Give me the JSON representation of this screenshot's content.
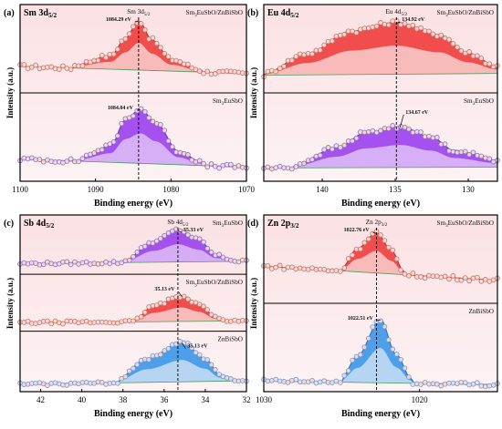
{
  "colors": {
    "background_top": "#fbe1e3",
    "background_bottom": "#fdf1f2",
    "axis": "#000000",
    "sm_red_fill": "#f03c3c",
    "sm_red_light": "#f8b3b0",
    "sm_red_line": "#c7423b",
    "sm_purple_fill": "#9a3ff0",
    "sm_purple_light": "#cfa3f7",
    "sb_blue_fill": "#3b96e9",
    "sb_blue_light": "#a9d0f3",
    "marker_edge_red": "#c8786d",
    "marker_edge_purple": "#8a72c8",
    "marker_edge_blue": "#6f9bd6",
    "marker_face": "#f7dad5",
    "base_green": "#4f9a62"
  },
  "chart_data": [
    {
      "id": "a",
      "type": "line",
      "panel_label": "(a)",
      "element_label": "Sm 3d5/2",
      "xlabel": "Binding energy (eV)",
      "ylabel": "Intensity (a.u.)",
      "xlim": [
        1100,
        1070
      ],
      "xticks": [
        "1100",
        "1090",
        "1080",
        "1070"
      ],
      "grid": false,
      "subpanels": [
        {
          "sample": "Sm3EuSbO7/ZnBiSbO6",
          "peak_label": "Sm 3d5/2",
          "peak_ev": 1084.29,
          "peak_text": "1084.29 eV",
          "theme": "red",
          "series": [
            {
              "name": "background",
              "x": [
                1100,
                1070
              ],
              "y": [
                0.3,
                0.22
              ]
            },
            {
              "name": "fit",
              "x": [
                1093,
                1088,
                1086,
                1084.29,
                1082.5,
                1080,
                1076
              ],
              "y": [
                0.31,
                0.42,
                0.62,
                0.82,
                0.6,
                0.38,
                0.26
              ]
            }
          ]
        },
        {
          "sample": "Sm3EuSbO7",
          "peak_label": "",
          "peak_ev": 1084.04,
          "peak_text": "1084.04 eV",
          "theme": "purple",
          "series": [
            {
              "name": "background",
              "x": [
                1100,
                1070
              ],
              "y": [
                0.25,
                0.16
              ]
            },
            {
              "name": "fit",
              "x": [
                1092,
                1088,
                1086,
                1084.04,
                1082,
                1079,
                1076
              ],
              "y": [
                0.27,
                0.4,
                0.7,
                0.82,
                0.66,
                0.34,
                0.22
              ]
            }
          ]
        }
      ]
    },
    {
      "id": "b",
      "type": "line",
      "panel_label": "(b)",
      "element_label": "Eu 4d5/2",
      "xlabel": "Binding energy (eV)",
      "ylabel": "Intensity (a.u.)",
      "xlim": [
        144,
        128
      ],
      "xticks": [
        "140",
        "135",
        "130"
      ],
      "grid": false,
      "subpanels": [
        {
          "sample": "Sm3EuSbO7/ZnBiSbO6",
          "peak_label": "Eu 4d5/2",
          "peak_ev": 134.92,
          "peak_text": "134.92 eV",
          "theme": "red",
          "series": [
            {
              "name": "background",
              "x": [
                144,
                128
              ],
              "y": [
                0.2,
                0.22
              ]
            },
            {
              "name": "fit",
              "x": [
                144,
                141,
                138,
                134.92,
                132,
                130,
                128
              ],
              "y": [
                0.22,
                0.45,
                0.7,
                0.8,
                0.66,
                0.45,
                0.3
              ]
            }
          ]
        },
        {
          "sample": "Sm3EuSbO7",
          "peak_label": "",
          "peak_ev": 134.67,
          "peak_text": "134.67 eV",
          "theme": "purple",
          "series": [
            {
              "name": "background",
              "x": [
                144,
                128
              ],
              "y": [
                0.15,
                0.16
              ]
            },
            {
              "name": "fit",
              "x": [
                142,
                139,
                137,
                134.67,
                132.5,
                131,
                128
              ],
              "y": [
                0.18,
                0.38,
                0.55,
                0.62,
                0.5,
                0.35,
                0.24
              ]
            }
          ]
        }
      ]
    },
    {
      "id": "c",
      "type": "line",
      "panel_label": "(c)",
      "element_label": "Sb 4d5/2",
      "xlabel": "Binding energy (eV)",
      "ylabel": "Intensity (a.u.)",
      "xlim": [
        43,
        32
      ],
      "xticks": [
        "42",
        "40",
        "38",
        "36",
        "34",
        "32"
      ],
      "grid": false,
      "subpanels": [
        {
          "sample": "Sm3EuSbO7",
          "peak_label": "Sb 4d5/2",
          "peak_ev": 35.33,
          "peak_text": "35.33 eV",
          "theme": "purple",
          "series": [
            {
              "name": "background",
              "x": [
                43,
                32
              ],
              "y": [
                0.18,
                0.22
              ]
            },
            {
              "name": "fit",
              "x": [
                38,
                36.5,
                35.33,
                34.3,
                33.5,
                32.5
              ],
              "y": [
                0.22,
                0.55,
                0.75,
                0.58,
                0.32,
                0.23
              ]
            }
          ]
        },
        {
          "sample": "Sm3EuSbO7/ZnBiSbO6",
          "peak_label": "",
          "peak_ev": 35.13,
          "peak_text": "35.13 eV",
          "theme": "red",
          "series": [
            {
              "name": "background",
              "x": [
                43,
                32
              ],
              "y": [
                0.15,
                0.18
              ]
            },
            {
              "name": "fit",
              "x": [
                37.5,
                36.5,
                35.13,
                34.3,
                33.5,
                32.8
              ],
              "y": [
                0.18,
                0.45,
                0.62,
                0.48,
                0.25,
                0.18
              ]
            }
          ]
        },
        {
          "sample": "ZnBiSbO6",
          "peak_label": "",
          "peak_ev": 35.13,
          "peak_text": "35.13 eV",
          "theme": "blue",
          "series": [
            {
              "name": "background",
              "x": [
                43,
                32
              ],
              "y": [
                0.12,
                0.18
              ]
            },
            {
              "name": "fit",
              "x": [
                38.5,
                36.8,
                35.13,
                34,
                33.3,
                32.5
              ],
              "y": [
                0.14,
                0.55,
                0.82,
                0.55,
                0.28,
                0.19
              ]
            }
          ]
        }
      ]
    },
    {
      "id": "d",
      "type": "line",
      "panel_label": "(d)",
      "element_label": "Zn 2p3/2",
      "xlabel": "Binding energy (eV)",
      "ylabel": "Intensity (a.u.)",
      "xlim": [
        1030,
        1015
      ],
      "xticks": [
        "1030",
        "1020"
      ],
      "grid": false,
      "subpanels": [
        {
          "sample": "Sm3EuSbO7/ZnBiSbO6",
          "peak_label": "Zn 2p3/2",
          "peak_ev": 1022.76,
          "peak_text": "1022.76 eV",
          "theme": "red",
          "series": [
            {
              "name": "background",
              "x": [
                1030,
                1015
              ],
              "y": [
                0.42,
                0.26
              ]
            },
            {
              "name": "fit",
              "x": [
                1025,
                1024,
                1022.76,
                1021.8,
                1021
              ],
              "y": [
                0.4,
                0.62,
                0.8,
                0.6,
                0.36
              ]
            }
          ]
        },
        {
          "sample": "ZnBiSbO6",
          "peak_label": "",
          "peak_ev": 1022.51,
          "peak_text": "1022.51 eV",
          "theme": "blue",
          "series": [
            {
              "name": "background",
              "x": [
                1030,
                1015
              ],
              "y": [
                0.12,
                0.08
              ]
            },
            {
              "name": "fit",
              "x": [
                1025,
                1024,
                1022.51,
                1021.5,
                1020.5
              ],
              "y": [
                0.16,
                0.4,
                0.82,
                0.42,
                0.14
              ]
            }
          ]
        }
      ]
    }
  ]
}
